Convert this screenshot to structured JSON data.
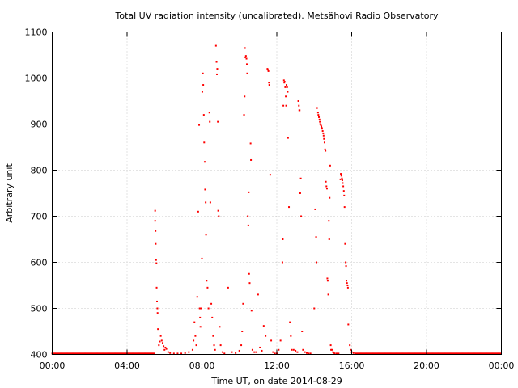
{
  "chart_data": {
    "type": "scatter",
    "title": "Total UV radiation intensity (uncalibrated). Metsähovi Radio Observatory",
    "xlabel": "Time UT, on date 2014-08-29",
    "ylabel": "Arbitrary unit",
    "xlim": [
      0,
      24
    ],
    "ylim": [
      400,
      1100
    ],
    "grid": true,
    "colors": {
      "series": "#ff0000",
      "grid": "#c8c8c8",
      "frame": "#000000"
    },
    "x_ticks": [
      {
        "value": 0,
        "label": "00:00"
      },
      {
        "value": 4,
        "label": "04:00"
      },
      {
        "value": 8,
        "label": "08:00"
      },
      {
        "value": 12,
        "label": "12:00"
      },
      {
        "value": 16,
        "label": "16:00"
      },
      {
        "value": 20,
        "label": "20:00"
      },
      {
        "value": 24,
        "label": "00:00"
      }
    ],
    "y_ticks": [
      {
        "value": 400,
        "label": "400"
      },
      {
        "value": 500,
        "label": "500"
      },
      {
        "value": 600,
        "label": "600"
      },
      {
        "value": 700,
        "label": "700"
      },
      {
        "value": 800,
        "label": "800"
      },
      {
        "value": 900,
        "label": "900"
      },
      {
        "value": 1000,
        "label": "1000"
      },
      {
        "value": 1100,
        "label": "1100"
      }
    ],
    "baseline": {
      "value": 402,
      "x_ranges": [
        [
          0,
          5.45
        ],
        [
          16.2,
          24
        ]
      ]
    },
    "series": [
      {
        "points": [
          [
            5.5,
            712
          ],
          [
            5.5,
            690
          ],
          [
            5.52,
            668
          ],
          [
            5.53,
            640
          ],
          [
            5.55,
            605
          ],
          [
            5.57,
            598
          ],
          [
            5.58,
            545
          ],
          [
            5.6,
            515
          ],
          [
            5.62,
            500
          ],
          [
            5.63,
            490
          ],
          [
            5.65,
            455
          ],
          [
            5.7,
            420
          ],
          [
            5.75,
            428
          ],
          [
            5.8,
            440
          ],
          [
            5.85,
            430
          ],
          [
            5.9,
            425
          ],
          [
            5.95,
            418
          ],
          [
            6.0,
            410
          ],
          [
            6.05,
            415
          ],
          [
            6.1,
            412
          ],
          [
            6.2,
            405
          ],
          [
            6.3,
            403
          ],
          [
            6.5,
            402
          ],
          [
            6.7,
            402
          ],
          [
            6.9,
            402
          ],
          [
            7.1,
            403
          ],
          [
            7.3,
            405
          ],
          [
            7.5,
            410
          ],
          [
            7.55,
            430
          ],
          [
            7.6,
            470
          ],
          [
            7.65,
            440
          ],
          [
            7.7,
            420
          ],
          [
            7.75,
            525
          ],
          [
            7.8,
            710
          ],
          [
            7.85,
            898
          ],
          [
            7.88,
            500
          ],
          [
            7.9,
            480
          ],
          [
            7.92,
            460
          ],
          [
            7.95,
            500
          ],
          [
            8.0,
            608
          ],
          [
            8.02,
            970
          ],
          [
            8.05,
            1010
          ],
          [
            8.07,
            985
          ],
          [
            8.1,
            920
          ],
          [
            8.12,
            860
          ],
          [
            8.15,
            818
          ],
          [
            8.17,
            758
          ],
          [
            8.2,
            730
          ],
          [
            8.22,
            660
          ],
          [
            8.25,
            560
          ],
          [
            8.3,
            545
          ],
          [
            8.35,
            500
          ],
          [
            8.4,
            925
          ],
          [
            8.42,
            905
          ],
          [
            8.45,
            730
          ],
          [
            8.5,
            510
          ],
          [
            8.55,
            480
          ],
          [
            8.6,
            440
          ],
          [
            8.65,
            420
          ],
          [
            8.7,
            410
          ],
          [
            8.75,
            1070
          ],
          [
            8.78,
            1035
          ],
          [
            8.8,
            1008
          ],
          [
            8.82,
            1020
          ],
          [
            8.85,
            905
          ],
          [
            8.87,
            712
          ],
          [
            8.9,
            700
          ],
          [
            8.95,
            460
          ],
          [
            9.0,
            420
          ],
          [
            9.1,
            405
          ],
          [
            9.2,
            402
          ],
          [
            9.4,
            545
          ],
          [
            9.6,
            405
          ],
          [
            9.8,
            403
          ],
          [
            10.0,
            408
          ],
          [
            10.1,
            420
          ],
          [
            10.15,
            450
          ],
          [
            10.2,
            510
          ],
          [
            10.25,
            920
          ],
          [
            10.28,
            960
          ],
          [
            10.3,
            1065
          ],
          [
            10.32,
            1045
          ],
          [
            10.35,
            1048
          ],
          [
            10.38,
            1042
          ],
          [
            10.4,
            1030
          ],
          [
            10.42,
            1010
          ],
          [
            10.45,
            700
          ],
          [
            10.48,
            680
          ],
          [
            10.5,
            752
          ],
          [
            10.52,
            575
          ],
          [
            10.55,
            555
          ],
          [
            10.6,
            858
          ],
          [
            10.62,
            822
          ],
          [
            10.65,
            495
          ],
          [
            10.7,
            410
          ],
          [
            10.8,
            405
          ],
          [
            10.9,
            405
          ],
          [
            11.0,
            530
          ],
          [
            11.1,
            415
          ],
          [
            11.2,
            408
          ],
          [
            11.3,
            462
          ],
          [
            11.4,
            440
          ],
          [
            11.5,
            1020
          ],
          [
            11.52,
            1018
          ],
          [
            11.55,
            1015
          ],
          [
            11.58,
            990
          ],
          [
            11.6,
            985
          ],
          [
            11.65,
            790
          ],
          [
            11.7,
            430
          ],
          [
            11.8,
            405
          ],
          [
            11.9,
            402
          ],
          [
            12.0,
            402
          ],
          [
            12.1,
            410
          ],
          [
            12.2,
            430
          ],
          [
            12.3,
            600
          ],
          [
            12.32,
            650
          ],
          [
            12.35,
            940
          ],
          [
            12.38,
            995
          ],
          [
            12.4,
            990
          ],
          [
            12.42,
            992
          ],
          [
            12.45,
            980
          ],
          [
            12.48,
            960
          ],
          [
            12.5,
            940
          ],
          [
            12.52,
            985
          ],
          [
            12.55,
            980
          ],
          [
            12.58,
            970
          ],
          [
            12.6,
            870
          ],
          [
            12.65,
            720
          ],
          [
            12.7,
            470
          ],
          [
            12.75,
            440
          ],
          [
            12.8,
            410
          ],
          [
            12.9,
            410
          ],
          [
            13.0,
            408
          ],
          [
            13.1,
            405
          ],
          [
            13.15,
            950
          ],
          [
            13.18,
            940
          ],
          [
            13.2,
            930
          ],
          [
            13.22,
            930
          ],
          [
            13.25,
            750
          ],
          [
            13.28,
            782
          ],
          [
            13.3,
            700
          ],
          [
            13.35,
            450
          ],
          [
            13.4,
            410
          ],
          [
            13.5,
            405
          ],
          [
            13.6,
            403
          ],
          [
            13.7,
            402
          ],
          [
            13.8,
            402
          ],
          [
            14.0,
            500
          ],
          [
            14.05,
            715
          ],
          [
            14.1,
            655
          ],
          [
            14.12,
            600
          ],
          [
            14.15,
            935
          ],
          [
            14.2,
            925
          ],
          [
            14.22,
            920
          ],
          [
            14.25,
            915
          ],
          [
            14.28,
            910
          ],
          [
            14.3,
            905
          ],
          [
            14.32,
            900
          ],
          [
            14.35,
            898
          ],
          [
            14.38,
            895
          ],
          [
            14.4,
            892
          ],
          [
            14.42,
            890
          ],
          [
            14.45,
            885
          ],
          [
            14.48,
            880
          ],
          [
            14.5,
            875
          ],
          [
            14.52,
            868
          ],
          [
            14.55,
            860
          ],
          [
            14.58,
            845
          ],
          [
            14.6,
            842
          ],
          [
            14.62,
            775
          ],
          [
            14.65,
            765
          ],
          [
            14.68,
            760
          ],
          [
            14.7,
            565
          ],
          [
            14.72,
            560
          ],
          [
            14.75,
            530
          ],
          [
            14.78,
            690
          ],
          [
            14.8,
            650
          ],
          [
            14.82,
            740
          ],
          [
            14.85,
            810
          ],
          [
            14.88,
            420
          ],
          [
            14.9,
            410
          ],
          [
            14.95,
            410
          ],
          [
            15.0,
            405
          ],
          [
            15.05,
            403
          ],
          [
            15.1,
            402
          ],
          [
            15.2,
            402
          ],
          [
            15.3,
            402
          ],
          [
            15.4,
            780
          ],
          [
            15.42,
            792
          ],
          [
            15.45,
            788
          ],
          [
            15.48,
            782
          ],
          [
            15.5,
            778
          ],
          [
            15.52,
            772
          ],
          [
            15.55,
            765
          ],
          [
            15.58,
            755
          ],
          [
            15.6,
            745
          ],
          [
            15.62,
            720
          ],
          [
            15.65,
            640
          ],
          [
            15.68,
            600
          ],
          [
            15.7,
            592
          ],
          [
            15.72,
            560
          ],
          [
            15.75,
            555
          ],
          [
            15.78,
            550
          ],
          [
            15.8,
            545
          ],
          [
            15.82,
            465
          ],
          [
            15.9,
            420
          ],
          [
            15.95,
            410
          ],
          [
            16.0,
            405
          ],
          [
            16.1,
            403
          ]
        ]
      }
    ]
  }
}
